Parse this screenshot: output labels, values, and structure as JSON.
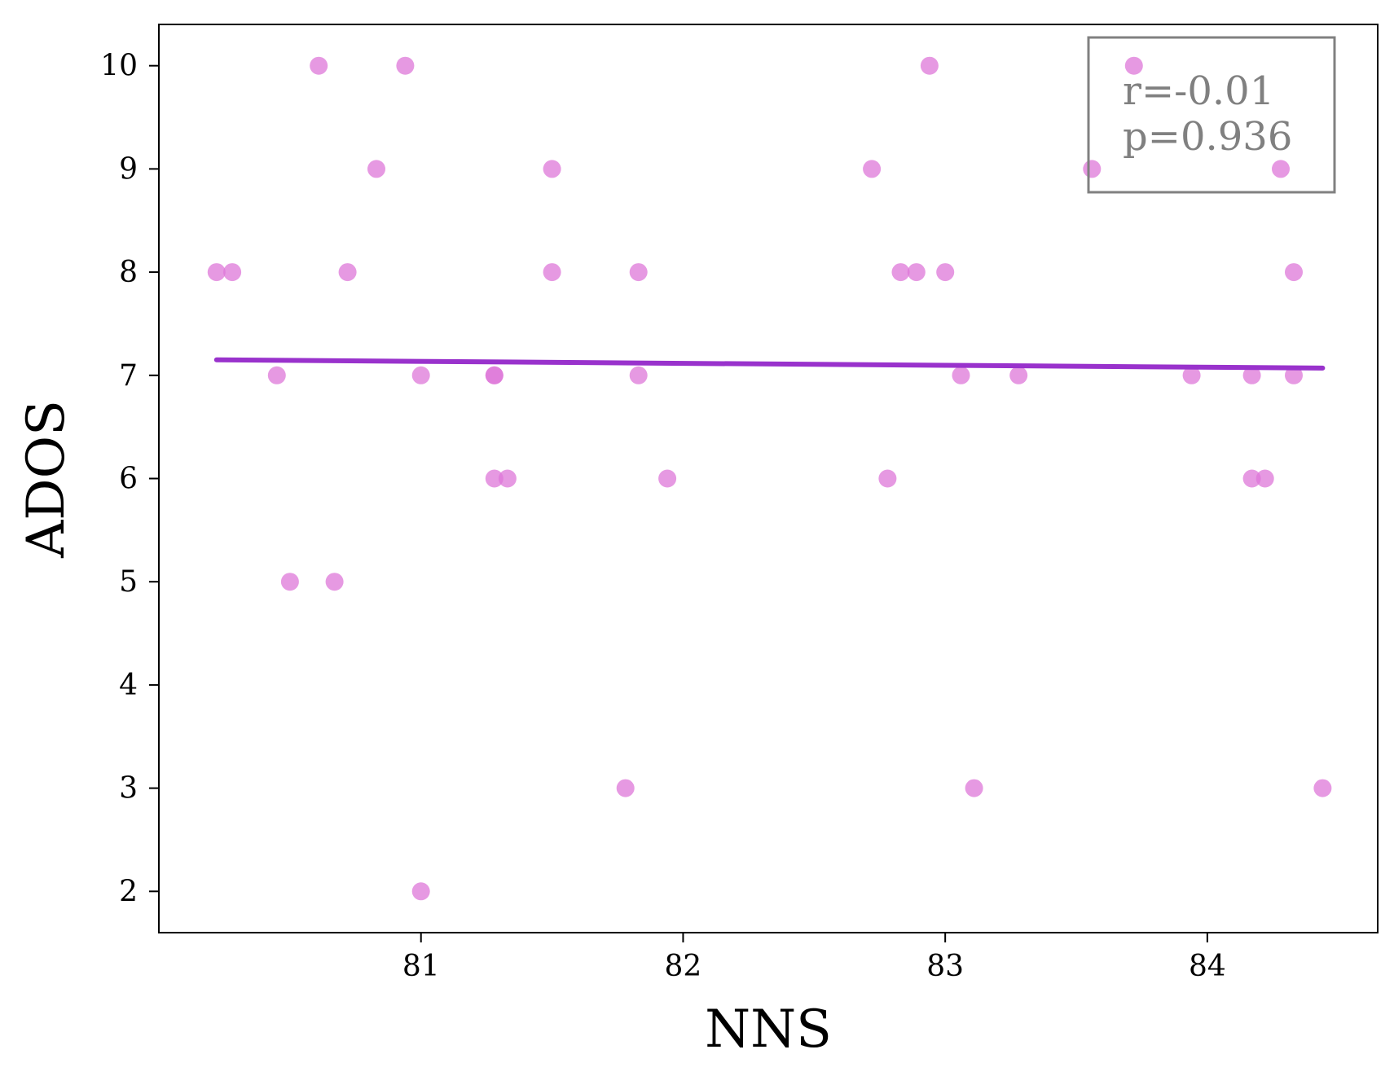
{
  "chart_data": {
    "type": "scatter",
    "title": "",
    "xlabel": "NNS",
    "ylabel": "ADOS",
    "xlim": [
      80.0,
      84.65
    ],
    "ylim": [
      1.6,
      10.4
    ],
    "xticks": [
      81,
      82,
      83,
      84
    ],
    "yticks": [
      2,
      3,
      4,
      5,
      6,
      7,
      8,
      9,
      10
    ],
    "grid": false,
    "colors": {
      "points": "#dd77d8",
      "fit_line": "#9932cc",
      "annotation_text": "#808080",
      "annotation_border": "#808080",
      "axes": "#000000"
    },
    "points": [
      {
        "x": 80.22,
        "y": 8
      },
      {
        "x": 80.28,
        "y": 8
      },
      {
        "x": 80.45,
        "y": 7
      },
      {
        "x": 80.5,
        "y": 5
      },
      {
        "x": 80.61,
        "y": 10
      },
      {
        "x": 80.67,
        "y": 5
      },
      {
        "x": 80.72,
        "y": 8
      },
      {
        "x": 80.83,
        "y": 9
      },
      {
        "x": 80.94,
        "y": 10
      },
      {
        "x": 81.0,
        "y": 7
      },
      {
        "x": 81.0,
        "y": 2
      },
      {
        "x": 81.28,
        "y": 7
      },
      {
        "x": 81.28,
        "y": 7
      },
      {
        "x": 81.28,
        "y": 6
      },
      {
        "x": 81.33,
        "y": 6
      },
      {
        "x": 81.5,
        "y": 9
      },
      {
        "x": 81.5,
        "y": 8
      },
      {
        "x": 81.78,
        "y": 3
      },
      {
        "x": 81.83,
        "y": 8
      },
      {
        "x": 81.83,
        "y": 7
      },
      {
        "x": 81.94,
        "y": 6
      },
      {
        "x": 82.72,
        "y": 9
      },
      {
        "x": 82.78,
        "y": 6
      },
      {
        "x": 82.83,
        "y": 8
      },
      {
        "x": 82.89,
        "y": 8
      },
      {
        "x": 82.94,
        "y": 10
      },
      {
        "x": 83.0,
        "y": 8
      },
      {
        "x": 83.06,
        "y": 7
      },
      {
        "x": 83.11,
        "y": 3
      },
      {
        "x": 83.28,
        "y": 7
      },
      {
        "x": 83.56,
        "y": 9
      },
      {
        "x": 83.72,
        "y": 10
      },
      {
        "x": 83.94,
        "y": 7
      },
      {
        "x": 84.17,
        "y": 7
      },
      {
        "x": 84.17,
        "y": 6
      },
      {
        "x": 84.22,
        "y": 6
      },
      {
        "x": 84.28,
        "y": 9
      },
      {
        "x": 84.33,
        "y": 8
      },
      {
        "x": 84.33,
        "y": 7
      },
      {
        "x": 84.44,
        "y": 3
      }
    ],
    "fit_line": {
      "x": [
        80.22,
        84.44
      ],
      "y": [
        7.15,
        7.07
      ]
    },
    "annotation": {
      "r_text": "r=-0.01",
      "p_text": "p=0.936",
      "position": "top-right"
    }
  }
}
